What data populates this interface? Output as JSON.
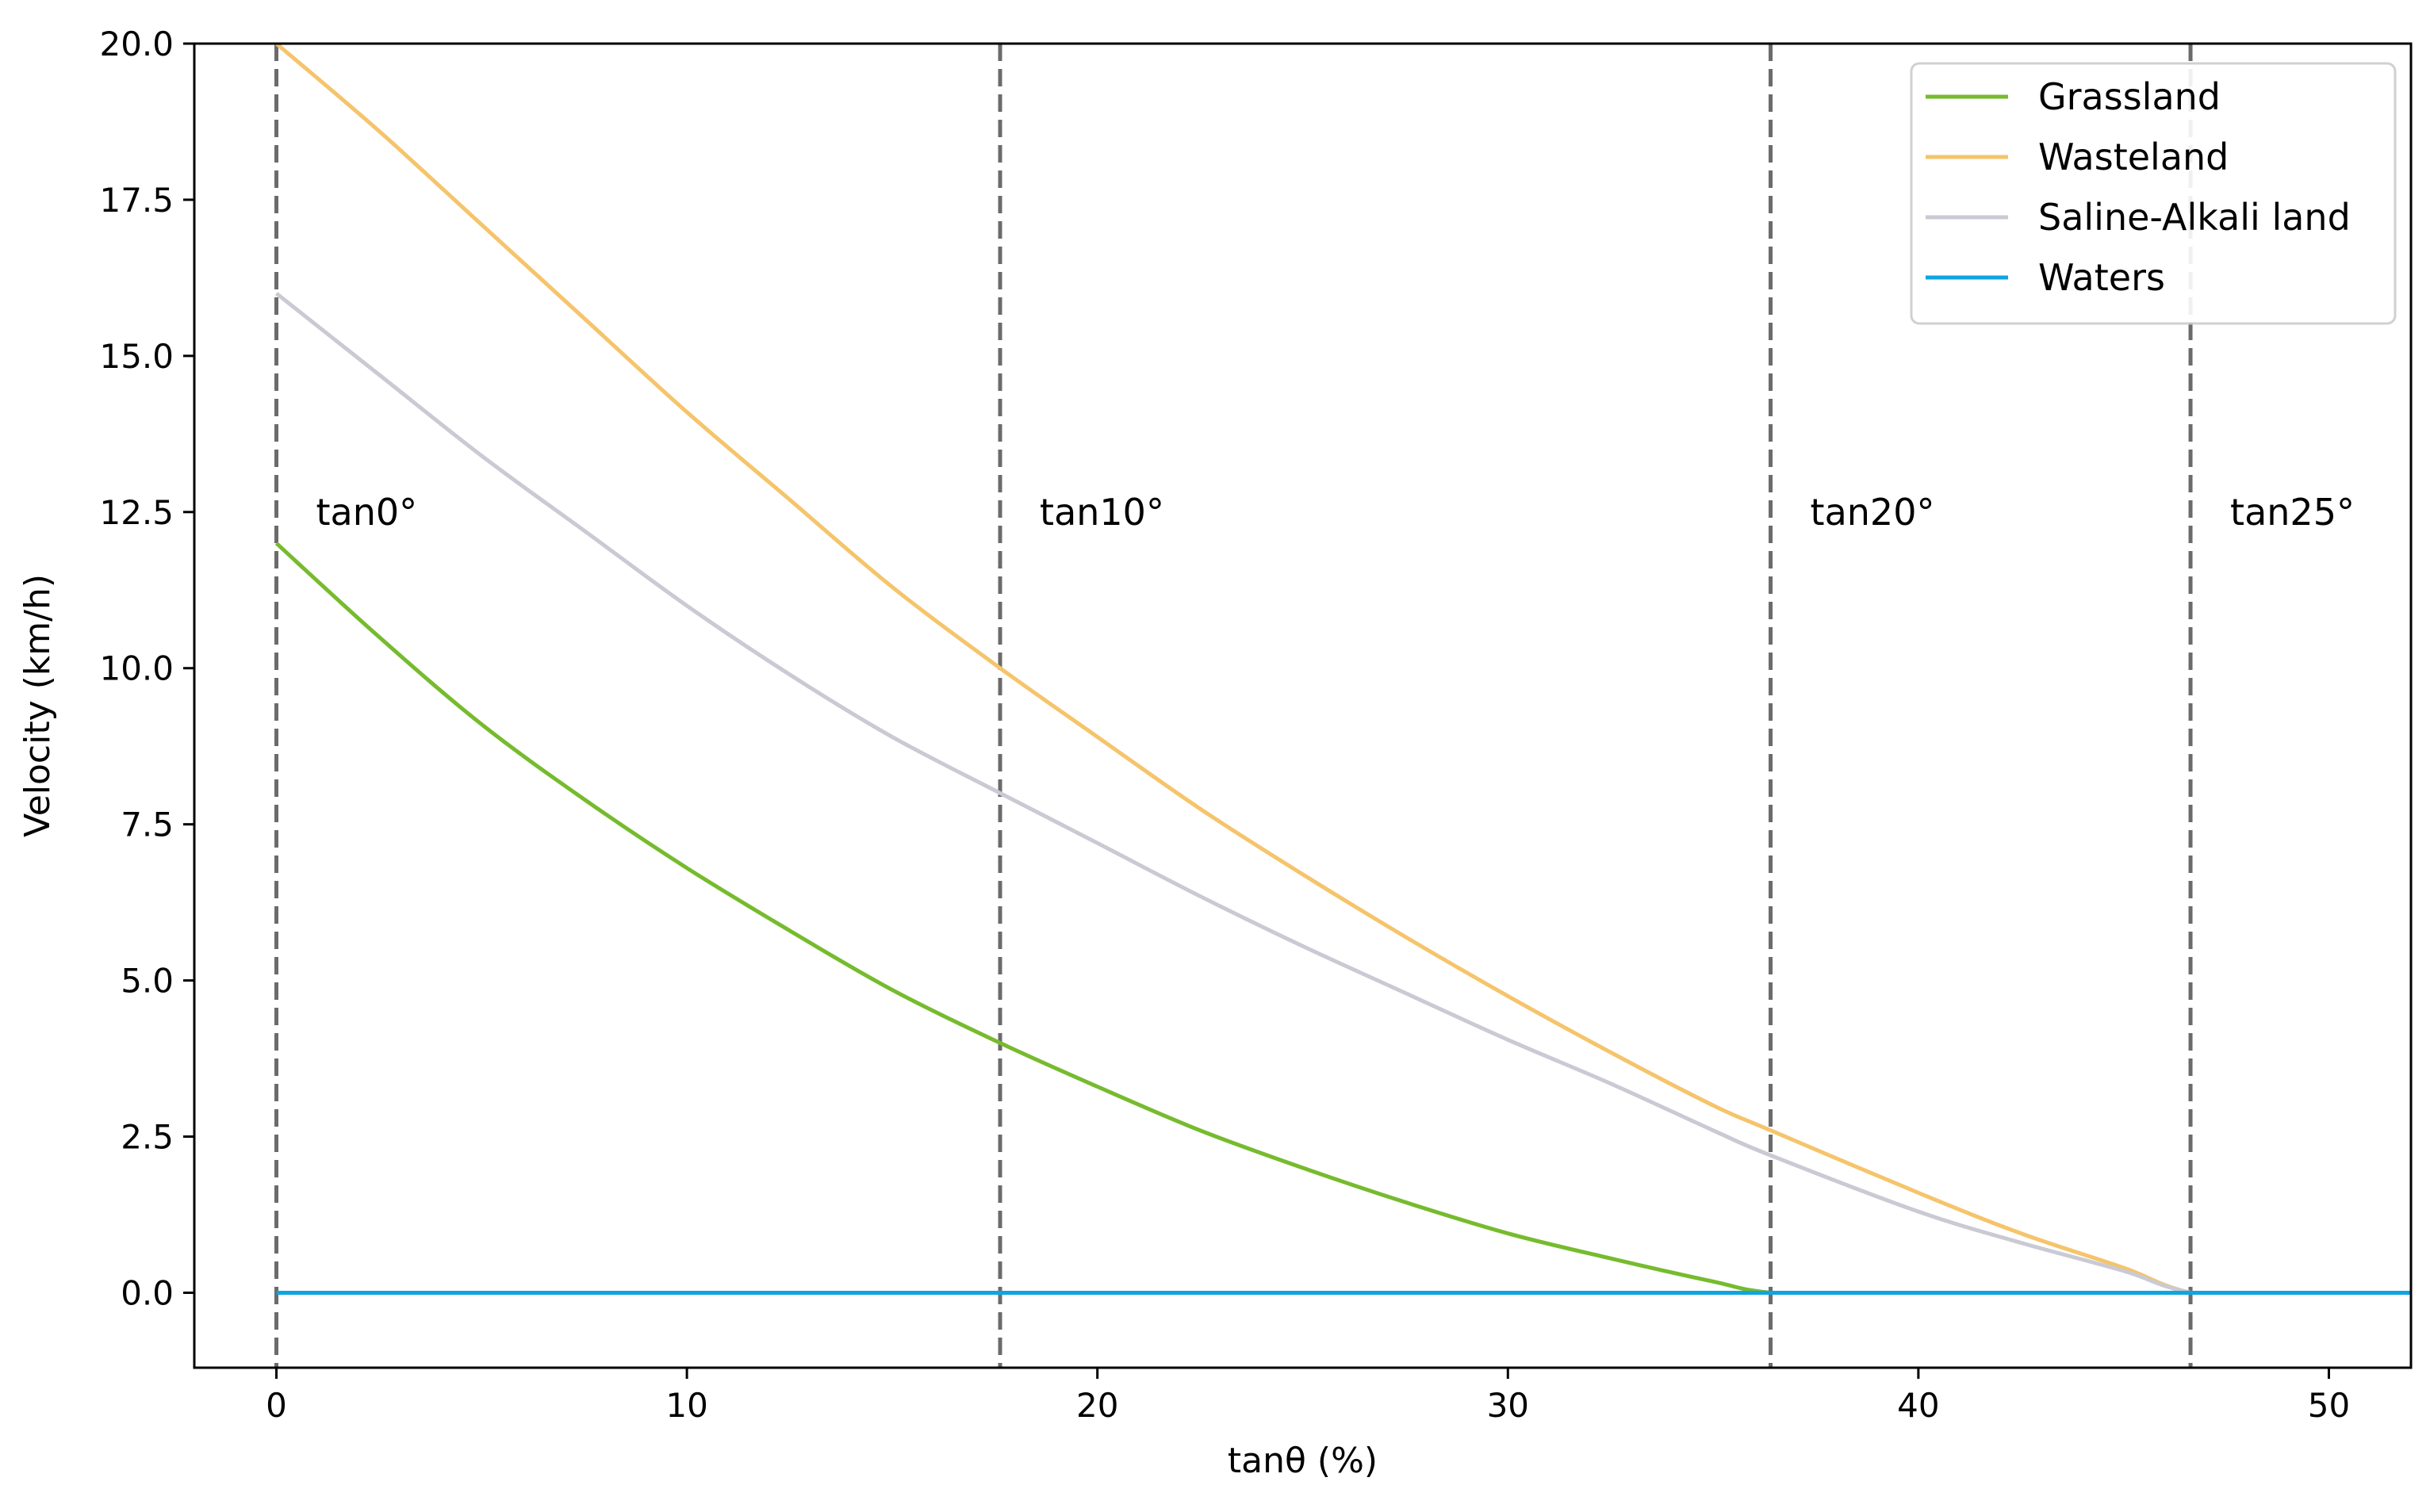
{
  "chart_data": {
    "type": "line",
    "title": "",
    "xlabel": "tanθ (%)",
    "ylabel": "Velocity (km/h)",
    "xlim": [
      -2,
      52
    ],
    "ylim": [
      -1.2,
      20
    ],
    "xticks": [
      0,
      10,
      20,
      30,
      40,
      50
    ],
    "yticks": [
      0.0,
      2.5,
      5.0,
      7.5,
      10.0,
      12.5,
      15.0,
      17.5,
      20.0
    ],
    "xtick_labels": [
      "0",
      "10",
      "20",
      "30",
      "40",
      "50"
    ],
    "ytick_labels": [
      "0.0",
      "2.5",
      "5.0",
      "7.5",
      "10.0",
      "12.5",
      "15.0",
      "17.5",
      "20.0"
    ],
    "grid": false,
    "legend_position": "top-right",
    "vertical_lines": [
      {
        "x": 0,
        "label": "tan0°"
      },
      {
        "x": 17.63,
        "label": "tan10°"
      },
      {
        "x": 36.4,
        "label": "tan20°"
      },
      {
        "x": 46.63,
        "label": "tan25°"
      }
    ],
    "series": [
      {
        "name": "Grassland",
        "color": "#76bb2e",
        "x": [
          0,
          2.5,
          5,
          7.5,
          10,
          12.5,
          15,
          17.63,
          20,
          22.5,
          25,
          27.5,
          30,
          32.5,
          35,
          36.4,
          40,
          45,
          50,
          52
        ],
        "y": [
          12.0,
          10.5,
          9.1,
          7.9,
          6.8,
          5.8,
          4.85,
          4.0,
          3.3,
          2.6,
          2.0,
          1.45,
          0.95,
          0.55,
          0.18,
          0.0,
          0.0,
          0.0,
          0.0,
          0.0
        ]
      },
      {
        "name": "Wasteland",
        "color": "#f5c46b",
        "x": [
          0,
          2.5,
          5,
          7.5,
          10,
          12.5,
          15,
          17.63,
          20,
          22.5,
          25,
          27.5,
          30,
          32.5,
          35,
          36.4,
          40,
          42.5,
          45,
          46.63,
          50,
          52
        ],
        "y": [
          20.0,
          18.6,
          17.1,
          15.6,
          14.1,
          12.7,
          11.3,
          10.0,
          8.9,
          7.75,
          6.7,
          5.7,
          4.75,
          3.85,
          3.0,
          2.6,
          1.6,
          0.95,
          0.4,
          0.0,
          0.0,
          0.0
        ]
      },
      {
        "name": "Saline-Alkali land",
        "color": "#c9cad3",
        "x": [
          0,
          2.5,
          5,
          7.5,
          10,
          12.5,
          15,
          17.63,
          20,
          22.5,
          25,
          27.5,
          30,
          32.5,
          35,
          36.4,
          40,
          42.5,
          45,
          46.63,
          50,
          52
        ],
        "y": [
          16.0,
          14.7,
          13.4,
          12.2,
          11.0,
          9.9,
          8.9,
          8.0,
          7.2,
          6.35,
          5.55,
          4.8,
          4.05,
          3.35,
          2.6,
          2.2,
          1.3,
          0.8,
          0.35,
          0.0,
          0.0,
          0.0
        ]
      },
      {
        "name": "Waters",
        "color": "#0ea5e1",
        "x": [
          0,
          52
        ],
        "y": [
          0.0,
          0.0
        ]
      }
    ]
  }
}
